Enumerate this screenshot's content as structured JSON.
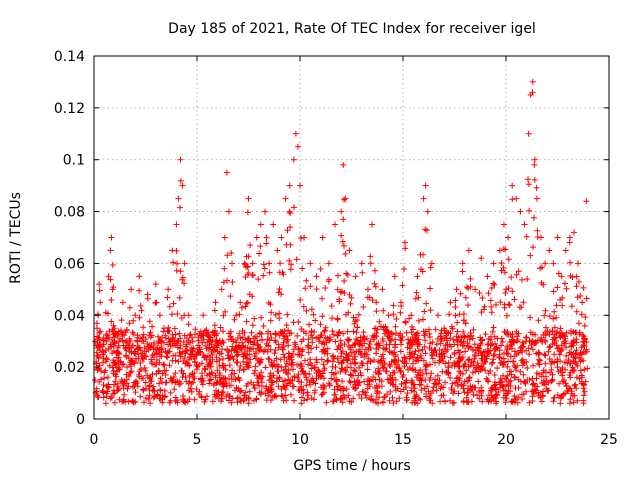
{
  "chart_data": {
    "type": "scatter",
    "title": "Day 185 of 2021, Rate Of TEC Index for receiver igel",
    "xlabel": "GPS time / hours",
    "ylabel": "ROTI / TECUs",
    "xlim": [
      0,
      25
    ],
    "ylim": [
      0,
      0.14
    ],
    "x_ticks": [
      0,
      5,
      10,
      15,
      20,
      25
    ],
    "x_tick_labels": [
      "0",
      "5",
      "10",
      "15",
      "20",
      "25"
    ],
    "y_ticks": [
      0,
      0.02,
      0.04,
      0.06,
      0.08,
      0.1,
      0.12,
      0.14
    ],
    "y_tick_labels": [
      "0",
      "0.02",
      "0.04",
      "0.06",
      "0.08",
      "0.1",
      "0.12",
      "0.14"
    ],
    "grid": true,
    "marker": "plus",
    "series": [
      {
        "name": "ROTI",
        "color": "#ff0000",
        "points": [
          [
            0.05,
            0.015
          ],
          [
            0.1,
            0.022
          ],
          [
            0.15,
            0.035
          ],
          [
            0.2,
            0.04
          ],
          [
            0.25,
            0.052
          ],
          [
            0.3,
            0.045
          ],
          [
            0.4,
            0.028
          ],
          [
            0.5,
            0.018
          ],
          [
            0.6,
            0.03
          ],
          [
            0.7,
            0.055
          ],
          [
            0.8,
            0.065
          ],
          [
            0.85,
            0.07
          ],
          [
            0.9,
            0.05
          ],
          [
            1.0,
            0.035
          ],
          [
            1.2,
            0.025
          ],
          [
            1.4,
            0.045
          ],
          [
            1.6,
            0.02
          ],
          [
            1.8,
            0.05
          ],
          [
            2.0,
            0.04
          ],
          [
            2.2,
            0.055
          ],
          [
            2.4,
            0.03
          ],
          [
            2.6,
            0.048
          ],
          [
            2.8,
            0.022
          ],
          [
            3.0,
            0.052
          ],
          [
            3.2,
            0.04
          ],
          [
            3.4,
            0.035
          ],
          [
            3.6,
            0.05
          ],
          [
            3.8,
            0.065
          ],
          [
            4.0,
            0.075
          ],
          [
            4.1,
            0.085
          ],
          [
            4.2,
            0.1
          ],
          [
            4.3,
            0.09
          ],
          [
            4.4,
            0.06
          ],
          [
            4.6,
            0.04
          ],
          [
            4.8,
            0.03
          ],
          [
            5.0,
            0.025
          ],
          [
            5.3,
            0.04
          ],
          [
            5.6,
            0.03
          ],
          [
            5.9,
            0.045
          ],
          [
            6.2,
            0.05
          ],
          [
            6.35,
            0.07
          ],
          [
            6.45,
            0.095
          ],
          [
            6.55,
            0.08
          ],
          [
            6.7,
            0.06
          ],
          [
            6.9,
            0.04
          ],
          [
            7.1,
            0.045
          ],
          [
            7.3,
            0.06
          ],
          [
            7.5,
            0.085
          ],
          [
            7.7,
            0.06
          ],
          [
            7.9,
            0.07
          ],
          [
            8.1,
            0.075
          ],
          [
            8.3,
            0.08
          ],
          [
            8.5,
            0.06
          ],
          [
            8.7,
            0.075
          ],
          [
            8.9,
            0.065
          ],
          [
            9.1,
            0.07
          ],
          [
            9.3,
            0.085
          ],
          [
            9.5,
            0.09
          ],
          [
            9.7,
            0.1
          ],
          [
            9.8,
            0.11
          ],
          [
            9.9,
            0.105
          ],
          [
            10.0,
            0.09
          ],
          [
            10.2,
            0.07
          ],
          [
            10.5,
            0.06
          ],
          [
            10.8,
            0.055
          ],
          [
            11.1,
            0.07
          ],
          [
            11.4,
            0.06
          ],
          [
            11.7,
            0.075
          ],
          [
            12.0,
            0.08
          ],
          [
            12.1,
            0.098
          ],
          [
            12.2,
            0.085
          ],
          [
            12.4,
            0.065
          ],
          [
            12.7,
            0.055
          ],
          [
            13.0,
            0.06
          ],
          [
            13.3,
            0.05
          ],
          [
            13.5,
            0.075
          ],
          [
            13.7,
            0.045
          ],
          [
            14.0,
            0.05
          ],
          [
            14.3,
            0.04
          ],
          [
            14.6,
            0.055
          ],
          [
            14.9,
            0.045
          ],
          [
            15.1,
            0.068
          ],
          [
            15.4,
            0.04
          ],
          [
            15.7,
            0.055
          ],
          [
            16.0,
            0.085
          ],
          [
            16.1,
            0.09
          ],
          [
            16.2,
            0.08
          ],
          [
            16.4,
            0.06
          ],
          [
            16.7,
            0.04
          ],
          [
            17.0,
            0.035
          ],
          [
            17.3,
            0.045
          ],
          [
            17.6,
            0.05
          ],
          [
            17.9,
            0.06
          ],
          [
            18.2,
            0.065
          ],
          [
            18.5,
            0.05
          ],
          [
            18.8,
            0.062
          ],
          [
            19.1,
            0.055
          ],
          [
            19.4,
            0.06
          ],
          [
            19.7,
            0.065
          ],
          [
            19.9,
            0.075
          ],
          [
            20.1,
            0.07
          ],
          [
            20.3,
            0.09
          ],
          [
            20.5,
            0.085
          ],
          [
            20.7,
            0.08
          ],
          [
            20.9,
            0.075
          ],
          [
            21.1,
            0.11
          ],
          [
            21.2,
            0.125
          ],
          [
            21.3,
            0.13
          ],
          [
            21.4,
            0.1
          ],
          [
            21.5,
            0.085
          ],
          [
            21.7,
            0.07
          ],
          [
            21.9,
            0.06
          ],
          [
            22.1,
            0.065
          ],
          [
            22.3,
            0.06
          ],
          [
            22.5,
            0.07
          ],
          [
            22.7,
            0.055
          ],
          [
            22.9,
            0.065
          ],
          [
            23.1,
            0.07
          ],
          [
            23.3,
            0.072
          ],
          [
            23.5,
            0.06
          ],
          [
            23.7,
            0.045
          ],
          [
            23.9,
            0.084
          ]
        ]
      }
    ]
  }
}
